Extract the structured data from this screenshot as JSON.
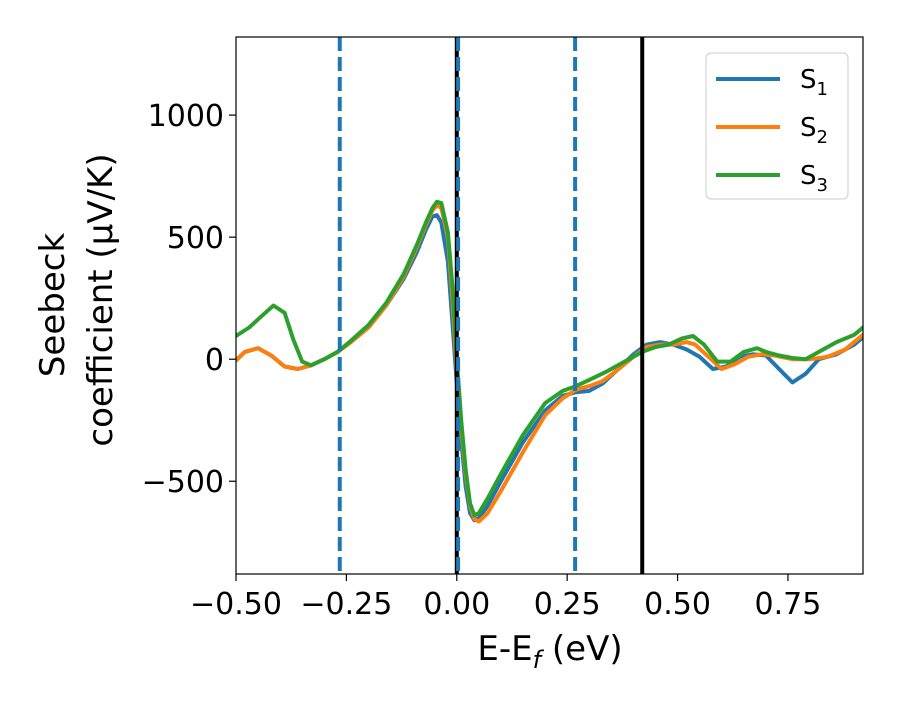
{
  "chart_data": {
    "type": "line",
    "xlabel": "E-E",
    "xlabel_sub": "f",
    "xlabel_unit": " (eV)",
    "ylabel_line1": "Seebeck",
    "ylabel_line2": "coefficient  (μV/K)",
    "xlim": [
      -0.5,
      0.92
    ],
    "ylim": [
      -880,
      1320
    ],
    "xticks": [
      -0.5,
      -0.25,
      0.0,
      0.25,
      0.5,
      0.75
    ],
    "xtick_labels": [
      "−0.50",
      "−0.25",
      "0.00",
      "0.25",
      "0.50",
      "0.75"
    ],
    "yticks": [
      -500,
      0,
      500,
      1000
    ],
    "ytick_labels": [
      "−500",
      "0",
      "500",
      "1000"
    ],
    "grid": false,
    "legend_position": "top-right",
    "vlines": [
      {
        "x": -0.265,
        "style": "dashed",
        "color": "#1f77b4"
      },
      {
        "x": 0.0,
        "style": "solid",
        "color": "#000000"
      },
      {
        "x": 0.003,
        "style": "dashed",
        "color": "#1f77b4"
      },
      {
        "x": 0.268,
        "style": "dashed",
        "color": "#1f77b4"
      },
      {
        "x": 0.42,
        "style": "solid",
        "color": "#000000"
      }
    ],
    "series": [
      {
        "name": "S",
        "sub": "1",
        "color": "#1f77b4",
        "points": [
          [
            -0.5,
            -5
          ],
          [
            -0.48,
            30
          ],
          [
            -0.45,
            45
          ],
          [
            -0.42,
            15
          ],
          [
            -0.39,
            -30
          ],
          [
            -0.36,
            -40
          ],
          [
            -0.33,
            -25
          ],
          [
            -0.3,
            0
          ],
          [
            -0.27,
            30
          ],
          [
            -0.24,
            70
          ],
          [
            -0.2,
            130
          ],
          [
            -0.16,
            220
          ],
          [
            -0.12,
            330
          ],
          [
            -0.09,
            440
          ],
          [
            -0.07,
            530
          ],
          [
            -0.055,
            585
          ],
          [
            -0.045,
            590
          ],
          [
            -0.035,
            560
          ],
          [
            -0.02,
            400
          ],
          [
            -0.01,
            150
          ],
          [
            0.0,
            -100
          ],
          [
            0.01,
            -330
          ],
          [
            0.02,
            -520
          ],
          [
            0.03,
            -630
          ],
          [
            0.04,
            -660
          ],
          [
            0.05,
            -650
          ],
          [
            0.07,
            -600
          ],
          [
            0.1,
            -500
          ],
          [
            0.15,
            -340
          ],
          [
            0.2,
            -210
          ],
          [
            0.24,
            -150
          ],
          [
            0.27,
            -135
          ],
          [
            0.3,
            -130
          ],
          [
            0.33,
            -100
          ],
          [
            0.36,
            -50
          ],
          [
            0.4,
            20
          ],
          [
            0.43,
            60
          ],
          [
            0.46,
            70
          ],
          [
            0.49,
            60
          ],
          [
            0.52,
            40
          ],
          [
            0.55,
            10
          ],
          [
            0.58,
            -40
          ],
          [
            0.61,
            -30
          ],
          [
            0.64,
            10
          ],
          [
            0.67,
            20
          ],
          [
            0.7,
            15
          ],
          [
            0.73,
            -40
          ],
          [
            0.76,
            -95
          ],
          [
            0.79,
            -60
          ],
          [
            0.82,
            0
          ],
          [
            0.86,
            20
          ],
          [
            0.9,
            60
          ],
          [
            0.92,
            90
          ]
        ]
      },
      {
        "name": "S",
        "sub": "2",
        "color": "#ff7f0e",
        "points": [
          [
            -0.5,
            -5
          ],
          [
            -0.48,
            30
          ],
          [
            -0.45,
            45
          ],
          [
            -0.42,
            15
          ],
          [
            -0.39,
            -30
          ],
          [
            -0.36,
            -40
          ],
          [
            -0.33,
            -25
          ],
          [
            -0.3,
            0
          ],
          [
            -0.27,
            30
          ],
          [
            -0.24,
            70
          ],
          [
            -0.2,
            130
          ],
          [
            -0.16,
            220
          ],
          [
            -0.12,
            340
          ],
          [
            -0.09,
            460
          ],
          [
            -0.07,
            550
          ],
          [
            -0.055,
            610
          ],
          [
            -0.045,
            630
          ],
          [
            -0.035,
            620
          ],
          [
            -0.02,
            500
          ],
          [
            -0.01,
            250
          ],
          [
            0.0,
            -50
          ],
          [
            0.01,
            -280
          ],
          [
            0.02,
            -470
          ],
          [
            0.03,
            -600
          ],
          [
            0.04,
            -655
          ],
          [
            0.05,
            -665
          ],
          [
            0.07,
            -630
          ],
          [
            0.1,
            -540
          ],
          [
            0.15,
            -380
          ],
          [
            0.2,
            -230
          ],
          [
            0.24,
            -160
          ],
          [
            0.27,
            -125
          ],
          [
            0.3,
            -110
          ],
          [
            0.33,
            -90
          ],
          [
            0.36,
            -50
          ],
          [
            0.4,
            10
          ],
          [
            0.43,
            50
          ],
          [
            0.46,
            60
          ],
          [
            0.49,
            60
          ],
          [
            0.52,
            70
          ],
          [
            0.54,
            60
          ],
          [
            0.57,
            10
          ],
          [
            0.6,
            -40
          ],
          [
            0.63,
            -20
          ],
          [
            0.66,
            10
          ],
          [
            0.69,
            20
          ],
          [
            0.72,
            15
          ],
          [
            0.76,
            0
          ],
          [
            0.8,
            0
          ],
          [
            0.84,
            10
          ],
          [
            0.88,
            40
          ],
          [
            0.92,
            100
          ]
        ]
      },
      {
        "name": "S",
        "sub": "3",
        "color": "#2ca02c",
        "points": [
          [
            -0.5,
            95
          ],
          [
            -0.47,
            130
          ],
          [
            -0.44,
            180
          ],
          [
            -0.415,
            220
          ],
          [
            -0.39,
            190
          ],
          [
            -0.37,
            80
          ],
          [
            -0.35,
            -10
          ],
          [
            -0.33,
            -25
          ],
          [
            -0.3,
            0
          ],
          [
            -0.27,
            30
          ],
          [
            -0.24,
            75
          ],
          [
            -0.2,
            140
          ],
          [
            -0.16,
            230
          ],
          [
            -0.12,
            350
          ],
          [
            -0.09,
            470
          ],
          [
            -0.07,
            560
          ],
          [
            -0.055,
            620
          ],
          [
            -0.045,
            645
          ],
          [
            -0.035,
            640
          ],
          [
            -0.02,
            520
          ],
          [
            -0.01,
            300
          ],
          [
            0.0,
            0
          ],
          [
            0.01,
            -250
          ],
          [
            0.02,
            -450
          ],
          [
            0.03,
            -590
          ],
          [
            0.04,
            -640
          ],
          [
            0.05,
            -630
          ],
          [
            0.07,
            -570
          ],
          [
            0.1,
            -470
          ],
          [
            0.15,
            -310
          ],
          [
            0.2,
            -180
          ],
          [
            0.24,
            -130
          ],
          [
            0.27,
            -110
          ],
          [
            0.3,
            -85
          ],
          [
            0.34,
            -50
          ],
          [
            0.38,
            -10
          ],
          [
            0.42,
            30
          ],
          [
            0.45,
            50
          ],
          [
            0.48,
            60
          ],
          [
            0.51,
            85
          ],
          [
            0.535,
            95
          ],
          [
            0.56,
            60
          ],
          [
            0.59,
            -10
          ],
          [
            0.62,
            -10
          ],
          [
            0.65,
            30
          ],
          [
            0.68,
            45
          ],
          [
            0.7,
            30
          ],
          [
            0.73,
            15
          ],
          [
            0.76,
            5
          ],
          [
            0.79,
            0
          ],
          [
            0.82,
            30
          ],
          [
            0.86,
            70
          ],
          [
            0.9,
            100
          ],
          [
            0.92,
            130
          ]
        ]
      }
    ]
  }
}
